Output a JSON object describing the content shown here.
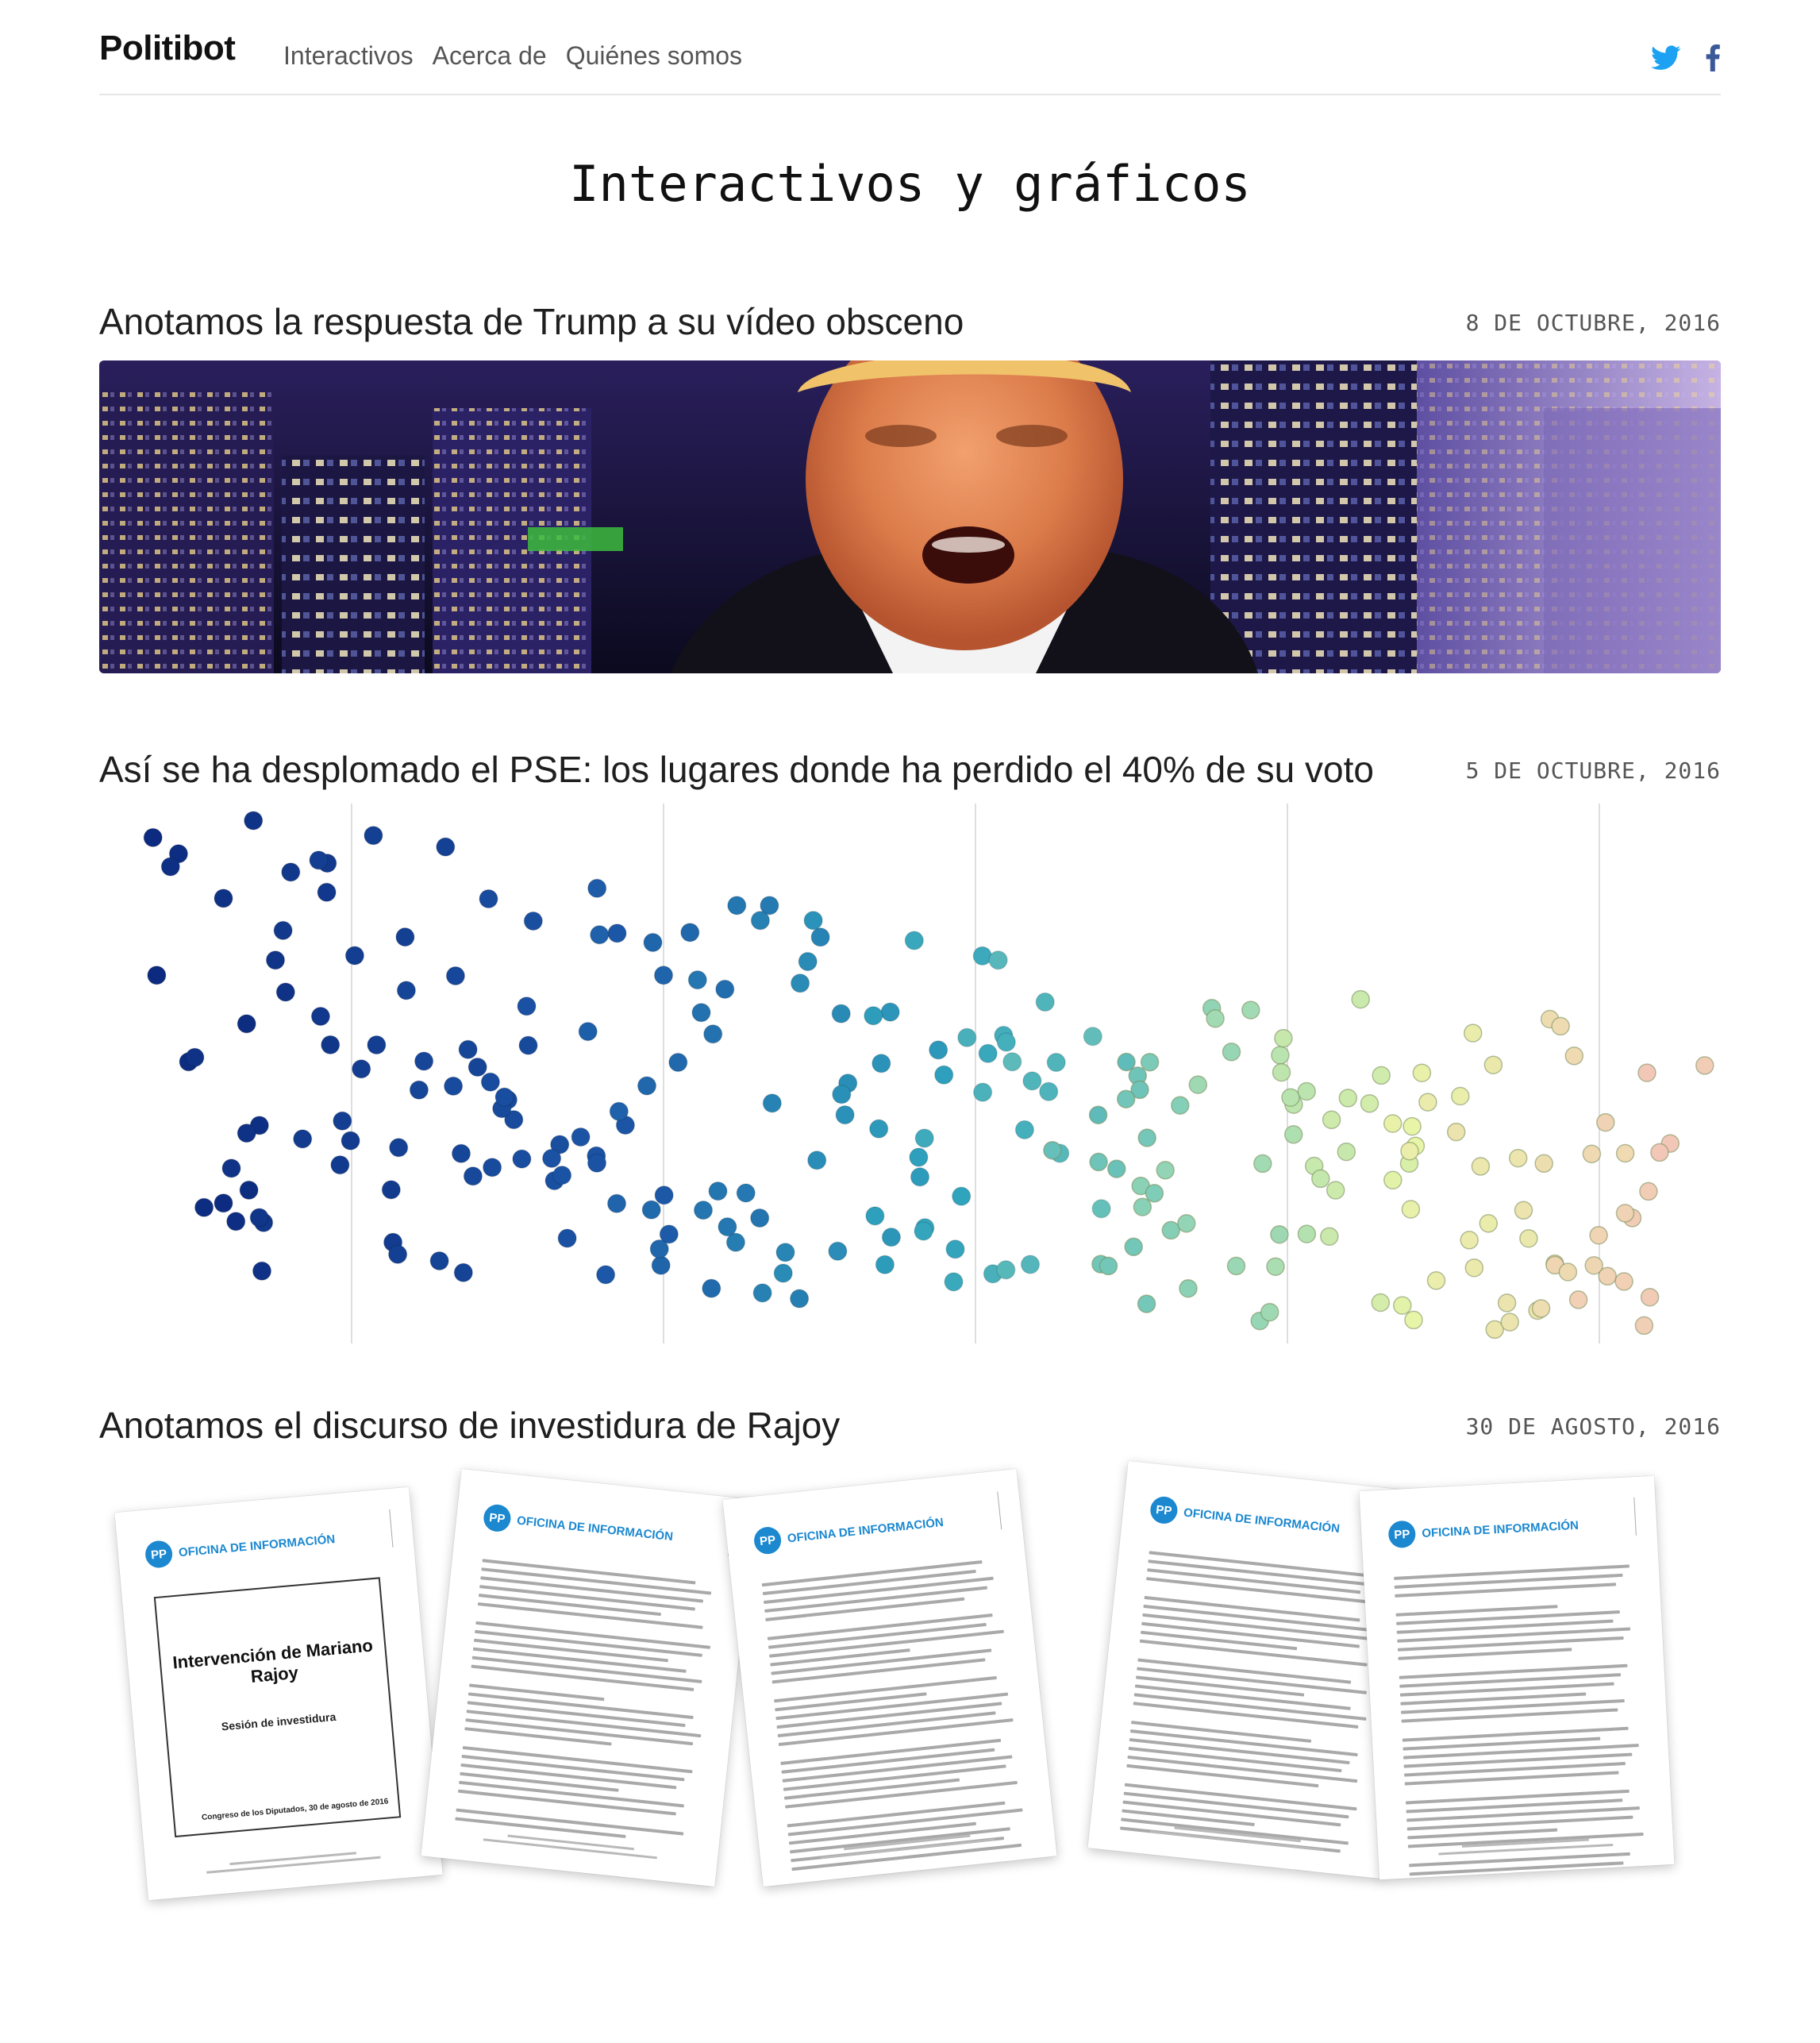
{
  "brand": "Politibot",
  "nav": [
    "Interactivos",
    "Acerca de",
    "Quiénes somos"
  ],
  "social": [
    "twitter-icon",
    "facebook-icon"
  ],
  "page_title": "Interactivos y gráficos",
  "articles": [
    {
      "title": "Anotamos la respuesta de Trump a su vídeo obsceno",
      "date": "8 DE OCTUBRE, 2016"
    },
    {
      "title": "Así se ha desplomado el PSE: los lugares donde ha perdido el 40% de su voto",
      "date": "5 DE OCTUBRE, 2016"
    },
    {
      "title": "Anotamos el discurso de investidura de Rajoy",
      "date": "30 DE AGOSTO, 2016"
    }
  ],
  "doc_header": "OFICINA DE INFORMACIÓN",
  "cover": {
    "title": "Intervención de Mariano Rajoy",
    "subtitle": "Sesión de investidura",
    "footer": "Congreso de los Diputados, 30 de agosto de 2016"
  },
  "colors": {
    "accent_twitter": "#1da1f2",
    "accent_facebook": "#3b5998",
    "pp_blue": "#1b88d0",
    "scatter_start": "#0c2a7f",
    "scatter_mid": "#2fa2bd",
    "scatter_light": "#e8f5a8",
    "scatter_end": "#f3c7b8"
  }
}
